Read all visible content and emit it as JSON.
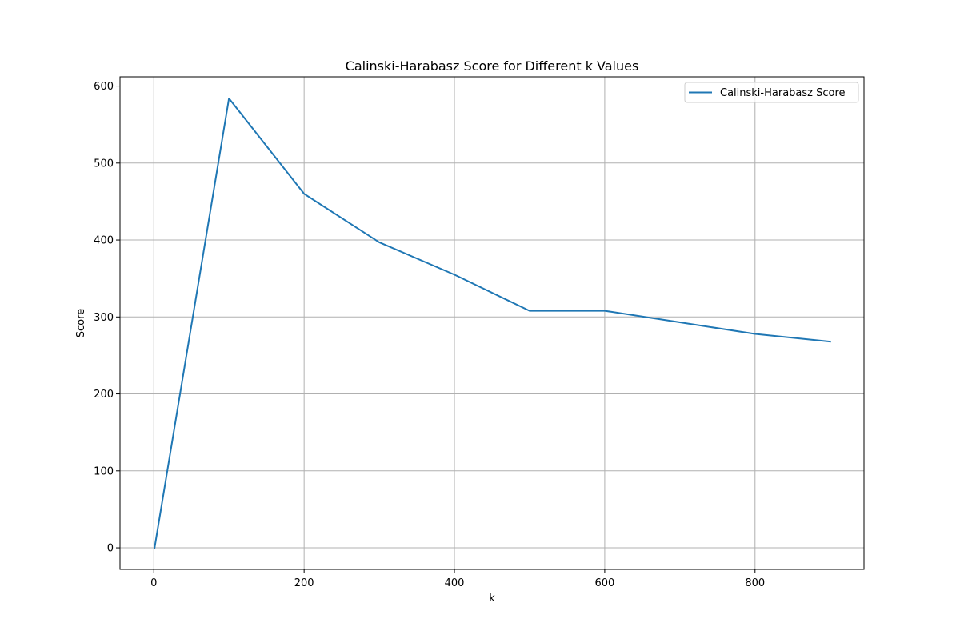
{
  "chart_data": {
    "type": "line",
    "title": "Calinski-Harabasz Score for Different k Values",
    "xlabel": "k",
    "ylabel": "Score",
    "xlim": [
      -45,
      945
    ],
    "ylim": [
      -28,
      612
    ],
    "xticks": [
      0,
      200,
      400,
      600,
      800
    ],
    "yticks": [
      0,
      100,
      200,
      300,
      400,
      500,
      600
    ],
    "grid": true,
    "legend_position": "upper right",
    "series": [
      {
        "name": "Calinski-Harabasz Score",
        "color": "#1f77b4",
        "x": [
          1,
          100,
          200,
          300,
          400,
          500,
          600,
          700,
          800,
          900
        ],
        "y": [
          0,
          584,
          460,
          397,
          355,
          308,
          308,
          293,
          278,
          268
        ]
      }
    ]
  }
}
